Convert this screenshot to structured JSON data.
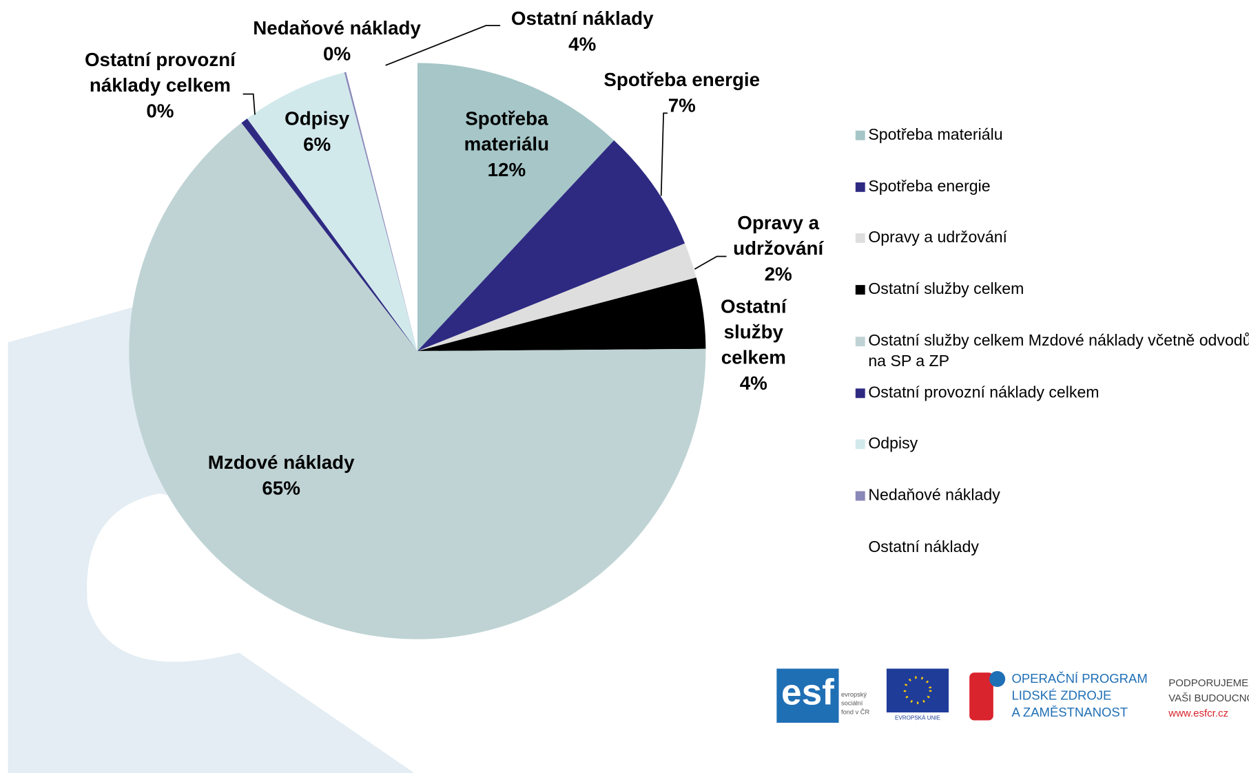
{
  "chart_data": {
    "type": "pie",
    "categories": [
      "Spotřeba materiálu",
      "Spotřeba energie",
      "Opravy a udržování",
      "Ostatní služby celkem",
      "Ostatní služby celkem Mzdové náklady včetně odvodů na SP a ZP",
      "Ostatní provozní náklady celkem",
      "Odpisy",
      "Nedaňové náklady",
      "Ostatní náklady"
    ],
    "slice_labels": [
      "Spotřeba materiálu",
      "Spotřeba energie",
      "Opravy a udržování",
      "Ostatní služby celkem",
      "Mzdové náklady",
      "Ostatní provozní náklady celkem",
      "Odpisy",
      "Nedaňové náklady",
      "Ostatní náklady"
    ],
    "values": [
      12,
      7,
      2,
      4,
      65,
      0.4,
      6,
      0.1,
      4
    ],
    "value_labels": [
      "12%",
      "7%",
      "2%",
      "4%",
      "65%",
      "0%",
      "6%",
      "0%",
      "4%"
    ],
    "colors": [
      "#a6c6c8",
      "#2e2a82",
      "#dedede",
      "#000000",
      "#bfd3d4",
      "#2e2a82",
      "#d2e9ec",
      "#8a88b8",
      "#ffffff"
    ],
    "legend": "right"
  },
  "footer": {
    "esf": "esf",
    "esf_lines": [
      "evropský",
      "sociální",
      "fond v ČR"
    ],
    "eu": "EVROPSKÁ UNIE",
    "program": [
      "OPERAČNÍ PROGRAM",
      "LIDSKÉ ZDROJE",
      "A ZAMĚSTNANOST"
    ],
    "slogan": [
      "PODPORUJEME",
      "VAŠI BUDOUCNOST",
      "www.esfcr.cz"
    ]
  }
}
